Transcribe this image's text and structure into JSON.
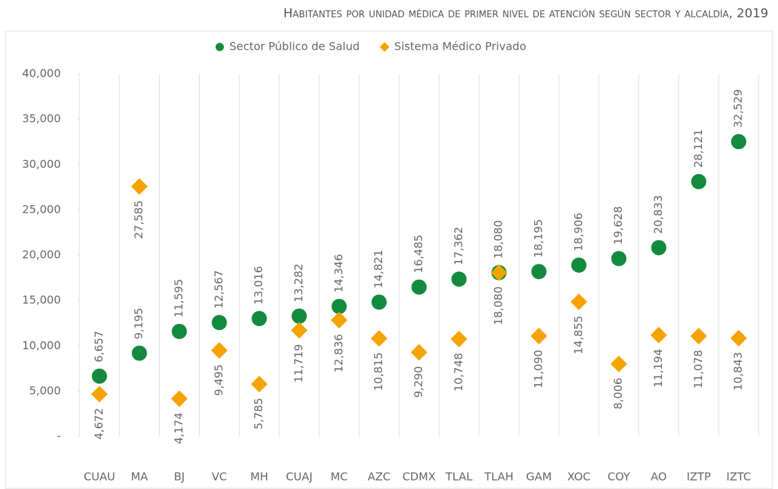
{
  "chart_data": {
    "type": "scatter",
    "title": "Habitantes por unidad médica de primer nivel de atención según sector y alcaldía, 2019",
    "categories": [
      "CUAU",
      "MA",
      "BJ",
      "VC",
      "MH",
      "CUAJ",
      "MC",
      "AZC",
      "CDMX",
      "TLAL",
      "TLAH",
      "GAM",
      "XOC",
      "COY",
      "AO",
      "IZTP",
      "IZTC"
    ],
    "series": [
      {
        "name": "Sector Público de Salud",
        "color": "#138a3e",
        "marker": "circle",
        "values": [
          6657,
          9195,
          11595,
          12567,
          13016,
          13282,
          14346,
          14821,
          16485,
          17362,
          18080,
          18195,
          18906,
          19628,
          20833,
          28121,
          32529
        ],
        "value_labels": [
          "6,657",
          "9,195",
          "11,595",
          "12,567",
          "13,016",
          "13,282",
          "14,346",
          "14,821",
          "16,485",
          "17,362",
          "18,080",
          "18,195",
          "18,906",
          "19,628",
          "20,833",
          "28,121",
          "32,529"
        ]
      },
      {
        "name": "Sistema Médico Privado",
        "color": "#f5a300",
        "marker": "diamond",
        "values": [
          4672,
          27585,
          4174,
          9495,
          5785,
          11719,
          12836,
          10815,
          9290,
          10748,
          18080,
          11090,
          14855,
          8006,
          11194,
          11078,
          10843
        ],
        "value_labels": [
          "4,672",
          "27,585",
          "4,174",
          "9,495",
          "5,785",
          "11,719",
          "12,836",
          "10,815",
          "9,290",
          "10,748",
          "18,080",
          "11,090",
          "14,855",
          "8,006",
          "11,194",
          "11,078",
          "10,843"
        ]
      }
    ],
    "ylim": [
      0,
      40000
    ],
    "yticks": [
      {
        "value": 0,
        "label": "-"
      },
      {
        "value": 5000,
        "label": "5,000"
      },
      {
        "value": 10000,
        "label": "10,000"
      },
      {
        "value": 15000,
        "label": "15,000"
      },
      {
        "value": 20000,
        "label": "20,000"
      },
      {
        "value": 25000,
        "label": "25,000"
      },
      {
        "value": 30000,
        "label": "30,000"
      },
      {
        "value": 35000,
        "label": "35,000"
      },
      {
        "value": 40000,
        "label": "40,000"
      }
    ],
    "legend": "top",
    "grid": "x"
  }
}
